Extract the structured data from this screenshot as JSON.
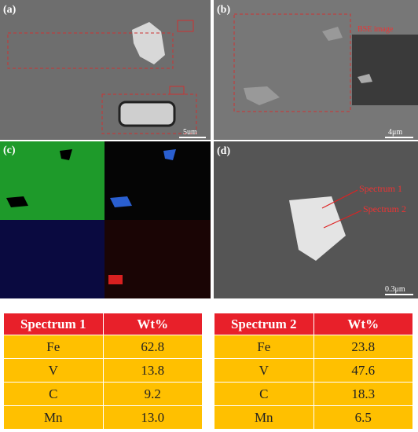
{
  "panels": [
    {
      "label": "(a)",
      "scale": "5um"
    },
    {
      "label": "(b)",
      "scale": "4μm",
      "annotation": "BSE image"
    },
    {
      "label": "(c)"
    },
    {
      "label": "(d)",
      "scale": "0.3μm",
      "annotations": [
        "Spectrum 1",
        "Spectrum 2"
      ]
    }
  ],
  "tables": [
    {
      "header": [
        "Spectrum 1",
        "Wt%"
      ],
      "rows": [
        [
          "Fe",
          "62.8"
        ],
        [
          "V",
          "13.8"
        ],
        [
          "C",
          "9.2"
        ],
        [
          "Mn",
          "13.0"
        ]
      ]
    },
    {
      "header": [
        "Spectrum 2",
        "Wt%"
      ],
      "rows": [
        [
          "Fe",
          "23.8"
        ],
        [
          "V",
          "47.6"
        ],
        [
          "C",
          "18.3"
        ],
        [
          "Mn",
          "6.5"
        ]
      ]
    }
  ]
}
